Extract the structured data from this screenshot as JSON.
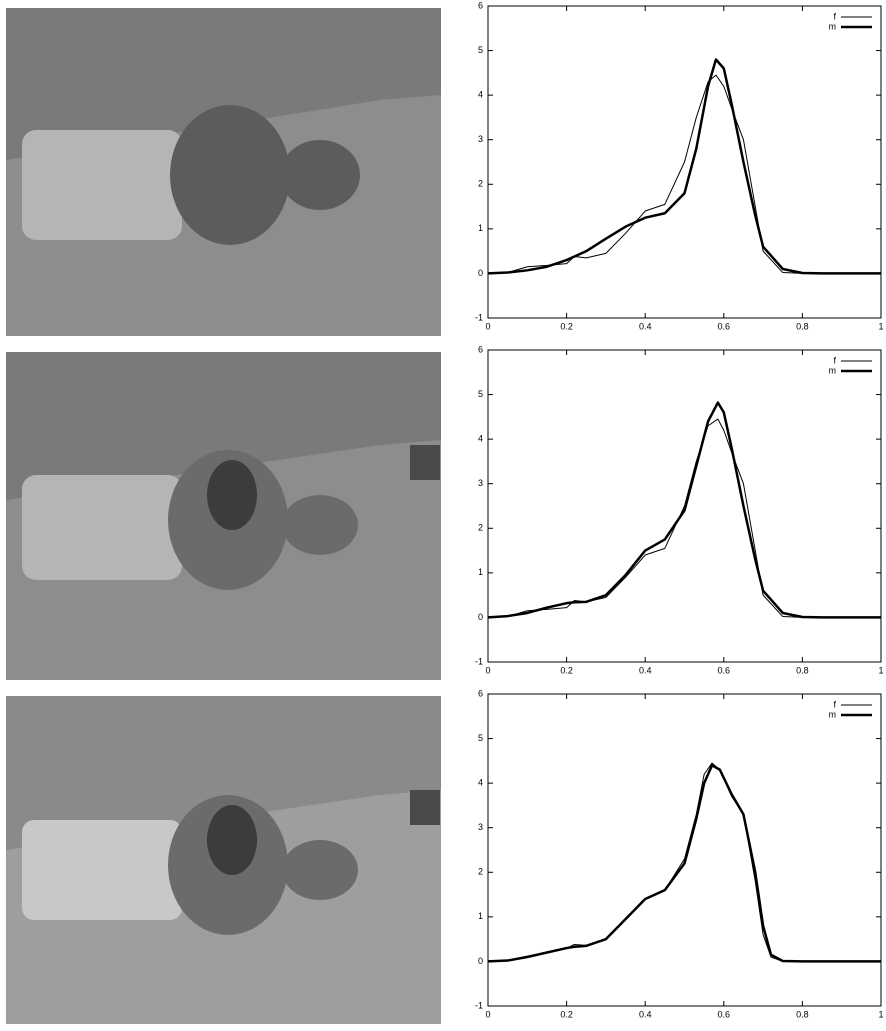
{
  "chart_data": [
    {
      "type": "line",
      "x": [
        0,
        0.05,
        0.1,
        0.15,
        0.2,
        0.22,
        0.25,
        0.3,
        0.35,
        0.4,
        0.45,
        0.5,
        0.53,
        0.56,
        0.58,
        0.6,
        0.62,
        0.65,
        0.68,
        0.7,
        0.75,
        0.8,
        0.85,
        0.9,
        1
      ],
      "series": [
        {
          "name": "f",
          "color": "#000000",
          "width": 1,
          "values": [
            0,
            0.02,
            0.15,
            0.18,
            0.22,
            0.38,
            0.35,
            0.45,
            0.9,
            1.4,
            1.55,
            2.5,
            3.5,
            4.3,
            4.45,
            4.2,
            3.7,
            3.0,
            1.5,
            0.5,
            0.02,
            0,
            0,
            0,
            0
          ]
        },
        {
          "name": "m",
          "color": "#000000",
          "width": 2.5,
          "values": [
            0,
            0.02,
            0.07,
            0.15,
            0.3,
            0.38,
            0.5,
            0.78,
            1.05,
            1.25,
            1.35,
            1.8,
            2.8,
            4.2,
            4.8,
            4.6,
            3.8,
            2.5,
            1.3,
            0.6,
            0.1,
            0.01,
            0,
            0,
            0
          ]
        }
      ],
      "xlim": [
        0,
        1
      ],
      "ylim": [
        -1,
        6
      ],
      "xticks": [
        0,
        0.2,
        0.4,
        0.6,
        0.8,
        1
      ],
      "yticks": [
        -1,
        0,
        1,
        2,
        3,
        4,
        5,
        6
      ],
      "legend": "top-right"
    },
    {
      "type": "line",
      "x": [
        0,
        0.05,
        0.1,
        0.15,
        0.2,
        0.22,
        0.25,
        0.3,
        0.35,
        0.4,
        0.45,
        0.5,
        0.53,
        0.56,
        0.585,
        0.6,
        0.62,
        0.65,
        0.68,
        0.7,
        0.75,
        0.8,
        0.85,
        0.9,
        1
      ],
      "series": [
        {
          "name": "f",
          "color": "#000000",
          "width": 1,
          "values": [
            0,
            0.02,
            0.15,
            0.18,
            0.22,
            0.38,
            0.35,
            0.45,
            0.9,
            1.4,
            1.55,
            2.5,
            3.5,
            4.3,
            4.45,
            4.2,
            3.7,
            3.0,
            1.5,
            0.5,
            0.02,
            0,
            0,
            0,
            0
          ]
        },
        {
          "name": "m",
          "color": "#000000",
          "width": 2.5,
          "values": [
            0,
            0.03,
            0.1,
            0.22,
            0.32,
            0.34,
            0.35,
            0.5,
            0.95,
            1.5,
            1.75,
            2.4,
            3.4,
            4.4,
            4.82,
            4.6,
            3.8,
            2.5,
            1.3,
            0.6,
            0.1,
            0.01,
            0,
            0,
            0
          ]
        }
      ],
      "xlim": [
        0,
        1
      ],
      "ylim": [
        -1,
        6
      ],
      "xticks": [
        0,
        0.2,
        0.4,
        0.6,
        0.8,
        1
      ],
      "yticks": [
        -1,
        0,
        1,
        2,
        3,
        4,
        5,
        6
      ],
      "legend": "top-right"
    },
    {
      "type": "line",
      "x": [
        0,
        0.05,
        0.1,
        0.15,
        0.2,
        0.22,
        0.25,
        0.3,
        0.35,
        0.4,
        0.45,
        0.5,
        0.53,
        0.55,
        0.57,
        0.59,
        0.62,
        0.65,
        0.68,
        0.7,
        0.72,
        0.75,
        0.8,
        0.9,
        1
      ],
      "series": [
        {
          "name": "f",
          "color": "#000000",
          "width": 1,
          "values": [
            0,
            0.02,
            0.12,
            0.2,
            0.3,
            0.38,
            0.36,
            0.5,
            0.95,
            1.4,
            1.6,
            2.3,
            3.3,
            4.2,
            4.45,
            4.3,
            3.7,
            3.3,
            1.8,
            0.6,
            0.1,
            0,
            0,
            0,
            0
          ]
        },
        {
          "name": "m",
          "color": "#000000",
          "width": 2.5,
          "values": [
            0,
            0.02,
            0.1,
            0.2,
            0.3,
            0.33,
            0.35,
            0.5,
            0.95,
            1.4,
            1.6,
            2.2,
            3.2,
            4.0,
            4.4,
            4.3,
            3.75,
            3.3,
            2.0,
            0.8,
            0.15,
            0.01,
            0,
            0,
            0
          ]
        }
      ],
      "xlim": [
        0,
        1
      ],
      "ylim": [
        -1,
        6
      ],
      "xticks": [
        0,
        0.2,
        0.4,
        0.6,
        0.8,
        1
      ],
      "yticks": [
        -1,
        0,
        1,
        2,
        3,
        4,
        5,
        6
      ],
      "legend": "top-right"
    }
  ]
}
